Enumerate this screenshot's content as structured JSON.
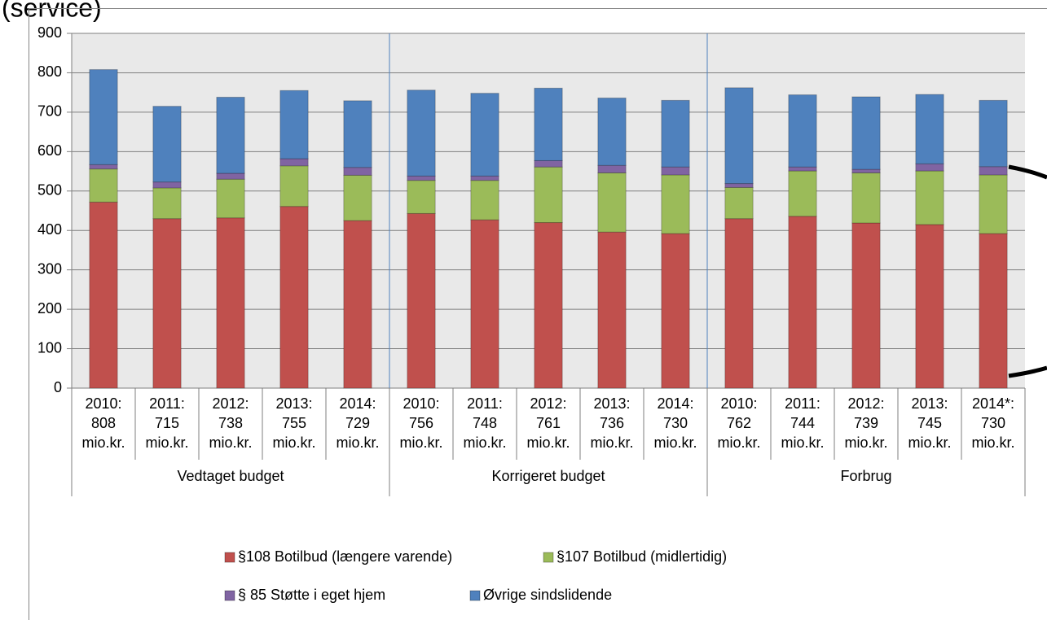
{
  "chart_data": {
    "type": "stacked-bar",
    "title": "(service)",
    "categories": [
      [
        "2010:",
        "808",
        "mio.kr."
      ],
      [
        "2011:",
        "715",
        "mio.kr."
      ],
      [
        "2012:",
        "738",
        "mio.kr."
      ],
      [
        "2013:",
        "755",
        "mio.kr."
      ],
      [
        "2014:",
        "729",
        "mio.kr."
      ],
      [
        "2010:",
        "756",
        "mio.kr."
      ],
      [
        "2011:",
        "748",
        "mio.kr."
      ],
      [
        "2012:",
        "761",
        "mio.kr."
      ],
      [
        "2013:",
        "736",
        "mio.kr."
      ],
      [
        "2014:",
        "730",
        "mio.kr."
      ],
      [
        "2010:",
        "762",
        "mio.kr."
      ],
      [
        "2011:",
        "744",
        "mio.kr."
      ],
      [
        "2012:",
        "739",
        "mio.kr."
      ],
      [
        "2013:",
        "745",
        "mio.kr."
      ],
      [
        "2014*:",
        "730",
        "mio.kr."
      ]
    ],
    "groups": [
      "Vedtaget budget",
      "Korrigeret budget",
      "Forbrug"
    ],
    "series": [
      {
        "name": "§108 Botilbud (længere varende)",
        "color": "#c0504d",
        "values": [
          472,
          430,
          432,
          461,
          425,
          443,
          427,
          420,
          396,
          392,
          430,
          436,
          419,
          415,
          392
        ]
      },
      {
        "name": "§107 Botilbud (midlertidig)",
        "color": "#9bbb59",
        "values": [
          84,
          78,
          98,
          103,
          115,
          84,
          100,
          141,
          150,
          149,
          79,
          115,
          127,
          136,
          149
        ]
      },
      {
        "name": "§ 85 Støtte i eget hjem",
        "color": "#8064a2",
        "values": [
          11,
          15,
          15,
          18,
          20,
          11,
          11,
          16,
          19,
          20,
          10,
          10,
          9,
          18,
          21
        ]
      },
      {
        "name": "Øvrige sindslidende",
        "color": "#4f81bd",
        "values": [
          241,
          192,
          193,
          173,
          169,
          218,
          210,
          184,
          171,
          169,
          243,
          183,
          184,
          176,
          168
        ]
      }
    ],
    "ylim": [
      0,
      900
    ],
    "yticks": [
      0,
      100,
      200,
      300,
      400,
      500,
      600,
      700,
      800,
      900
    ],
    "grid": true
  }
}
